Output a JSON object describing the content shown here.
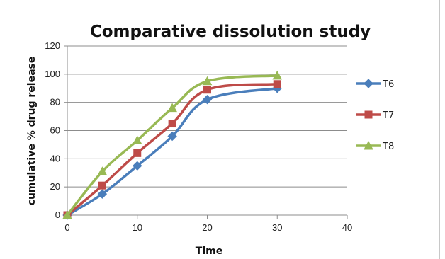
{
  "chart_data": {
    "type": "line",
    "title": "Comparative dissolution study",
    "xlabel": "Time",
    "ylabel": "cumulative % drug release",
    "xlim": [
      0,
      40
    ],
    "ylim": [
      0,
      120
    ],
    "x_ticks": [
      0,
      10,
      20,
      30,
      40
    ],
    "y_ticks": [
      0,
      20,
      40,
      60,
      80,
      100,
      120
    ],
    "grid": "horizontal",
    "legend_position": "right",
    "series": [
      {
        "name": "T6",
        "color": "#4a7ebb",
        "marker": "diamond",
        "x": [
          0,
          5,
          10,
          15,
          20,
          30
        ],
        "y": [
          0,
          15,
          35,
          56,
          82,
          90
        ]
      },
      {
        "name": "T7",
        "color": "#be4b48",
        "marker": "square",
        "x": [
          0,
          5,
          10,
          15,
          20,
          30
        ],
        "y": [
          0,
          21,
          44,
          65,
          89,
          93
        ]
      },
      {
        "name": "T8",
        "color": "#98b954",
        "marker": "triangle",
        "x": [
          0,
          5,
          10,
          15,
          20,
          30
        ],
        "y": [
          0,
          31,
          53,
          76,
          95,
          99
        ]
      }
    ]
  }
}
